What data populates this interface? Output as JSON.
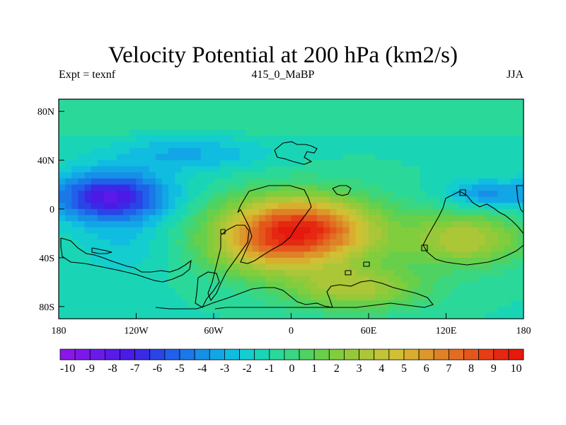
{
  "title": "Velocity Potential at 200 hPa (km2/s)",
  "left_label": "Expt = texnf",
  "center_label": "415_0_MaBP",
  "right_label": "JJA",
  "y_ticks": [
    {
      "label": "80N",
      "lat": 80
    },
    {
      "label": "40N",
      "lat": 40
    },
    {
      "label": "0",
      "lat": 0
    },
    {
      "label": "40S",
      "lat": -40
    },
    {
      "label": "80S",
      "lat": -80
    }
  ],
  "x_ticks": [
    {
      "label": "180",
      "lon": -180
    },
    {
      "label": "120W",
      "lon": -120
    },
    {
      "label": "60W",
      "lon": -60
    },
    {
      "label": "0",
      "lon": 0
    },
    {
      "label": "60E",
      "lon": 60
    },
    {
      "label": "120E",
      "lon": 120
    },
    {
      "label": "180",
      "lon": 180
    }
  ],
  "colorbar": {
    "labels": [
      "-10",
      "-9",
      "-8",
      "-7",
      "-6",
      "-5",
      "-4",
      "-3",
      "-2",
      "-1",
      "0",
      "1",
      "2",
      "3",
      "4",
      "5",
      "6",
      "7",
      "8",
      "9",
      "10"
    ],
    "colors": [
      "#8a17e8",
      "#7c19ea",
      "#6a1aea",
      "#5a1ae9",
      "#4a1ae6",
      "#3a2ae6",
      "#2845e6",
      "#2060ea",
      "#1b78e9",
      "#1590e6",
      "#12a6e6",
      "#10bce0",
      "#14cdcf",
      "#1ad5b5",
      "#2ad89a",
      "#3ad680",
      "#4fd262",
      "#68cf4a",
      "#80cd3d",
      "#96c93a",
      "#abc637",
      "#c0c436",
      "#d1c033",
      "#d9ae2f",
      "#dc982b",
      "#df8227",
      "#e26d22",
      "#e4561c",
      "#e53e16",
      "#e52811",
      "#e5190d"
    ]
  },
  "chart_data": {
    "type": "heatmap",
    "title": "Velocity Potential at 200 hPa (km2/s)",
    "subtitle": "415_0_MaBP",
    "experiment": "Expt = texnf",
    "season": "JJA",
    "units": "km2/s",
    "x_range": [
      -180,
      180
    ],
    "y_range": [
      -90,
      90
    ],
    "value_range": [
      -10,
      10
    ],
    "approx_features": [
      {
        "name": "min_east_pacific",
        "lon": -140,
        "lat": 10,
        "value": -7.5
      },
      {
        "name": "min_west_pacific",
        "lon": 150,
        "lat": 12,
        "value": -5
      },
      {
        "name": "low_north_atlantic",
        "lon": -80,
        "lat": 45,
        "value": -3
      },
      {
        "name": "max_south_atlantic",
        "lon": 5,
        "lat": -18,
        "value": 9.5
      },
      {
        "name": "high_australia",
        "lon": 135,
        "lat": -25,
        "value": 3.5
      },
      {
        "name": "high_southern_ocean",
        "lon": 50,
        "lat": -65,
        "value": 3
      }
    ],
    "background_value": -1,
    "polar_value": -0.7
  }
}
